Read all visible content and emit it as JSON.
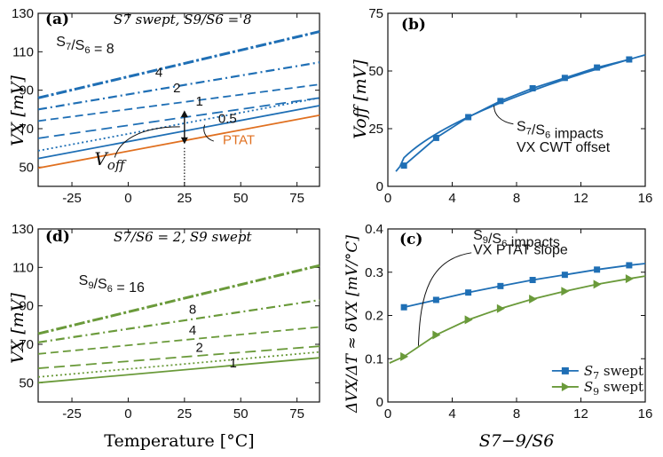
{
  "colors": {
    "blue": "#1f6fb5",
    "orange": "#e07020",
    "green": "#6a9a3a",
    "black": "#111111"
  },
  "chart_data": [
    {
      "id": "a",
      "type": "line",
      "panel_label": "(a)",
      "title": "S7 swept, S9/S6 = 8",
      "ylabel": "VX [mV]",
      "xlim": [
        -40,
        85
      ],
      "ylim": [
        40,
        130
      ],
      "xticks": [
        "-25",
        "0",
        "25",
        "50",
        "75"
      ],
      "yticks": [
        "50",
        "70",
        "90",
        "110",
        "130"
      ],
      "series": [
        {
          "name": "S7/S6 = 8",
          "x": [
            -40,
            85
          ],
          "y": [
            86,
            120.5
          ],
          "color": "#1f6fb5",
          "dash": "dashdot-heavy"
        },
        {
          "name": "4",
          "x": [
            -40,
            85
          ],
          "y": [
            80,
            104.5
          ],
          "color": "#1f6fb5",
          "dash": "dashdot"
        },
        {
          "name": "2",
          "x": [
            -40,
            85
          ],
          "y": [
            74,
            93
          ],
          "color": "#1f6fb5",
          "dash": "dashed"
        },
        {
          "name": "1",
          "x": [
            -40,
            85
          ],
          "y": [
            65,
            86
          ],
          "color": "#1f6fb5",
          "dash": "dashed-long"
        },
        {
          "name": "0.5",
          "x": [
            -40,
            85
          ],
          "y": [
            58.5,
            86
          ],
          "color": "#1f6fb5",
          "dash": "dotted"
        },
        {
          "name": "",
          "x": [
            -40,
            85
          ],
          "y": [
            54.5,
            82
          ],
          "color": "#1f6fb5",
          "dash": "solid"
        },
        {
          "name": "PTAT",
          "x": [
            -40,
            85
          ],
          "y": [
            49.5,
            77
          ],
          "color": "#e07020",
          "dash": "solid"
        }
      ],
      "annotations": [
        {
          "text": "S7/S6 = 8",
          "x": -32,
          "y": 113
        },
        {
          "text": "4",
          "x": 12,
          "y": 97
        },
        {
          "text": "2",
          "x": 20,
          "y": 89
        },
        {
          "text": "1",
          "x": 30,
          "y": 82
        },
        {
          "text": "0.5",
          "x": 40,
          "y": 73
        },
        {
          "text": "PTAT",
          "x": 42,
          "y": 62
        },
        {
          "text": "Voff",
          "x": -15,
          "y": 51
        }
      ],
      "voff_marker_x": 25
    },
    {
      "id": "b",
      "type": "line",
      "panel_label": "(b)",
      "ylabel": "Voff [mV]",
      "xlim": [
        0,
        16
      ],
      "ylim": [
        0,
        75
      ],
      "xticks": [
        "0",
        "4",
        "8",
        "12",
        "16"
      ],
      "yticks": [
        "0",
        "25",
        "50",
        "75"
      ],
      "series": [
        {
          "name": "",
          "x": [
            1,
            3,
            5,
            7,
            9,
            11,
            13,
            15
          ],
          "y": [
            9,
            21,
            30,
            37,
            42.5,
            47,
            51.5,
            55
          ],
          "color": "#1f6fb5"
        }
      ],
      "annotations": [
        {
          "text": "S7/S6 impacts",
          "x": 8,
          "y": 24
        },
        {
          "text": "VX CWT offset",
          "x": 8,
          "y": 15
        }
      ]
    },
    {
      "id": "d",
      "type": "line",
      "panel_label": "(d)",
      "title": "S7/S6 = 2, S9 swept",
      "ylabel": "VX [mV]",
      "xlabel": "Temperature [°C]",
      "xlim": [
        -40,
        85
      ],
      "ylim": [
        40,
        130
      ],
      "xticks": [
        "-25",
        "0",
        "25",
        "50",
        "75"
      ],
      "yticks": [
        "50",
        "70",
        "90",
        "110",
        "130"
      ],
      "series": [
        {
          "name": "S9/S6 = 16",
          "x": [
            -40,
            85
          ],
          "y": [
            75.5,
            111
          ],
          "color": "#6a9a3a",
          "dash": "dashdot-heavy"
        },
        {
          "name": "8",
          "x": [
            -40,
            85
          ],
          "y": [
            71,
            93
          ],
          "color": "#6a9a3a",
          "dash": "dashdot"
        },
        {
          "name": "4",
          "x": [
            -40,
            85
          ],
          "y": [
            65,
            79
          ],
          "color": "#6a9a3a",
          "dash": "dashed"
        },
        {
          "name": "2",
          "x": [
            -40,
            85
          ],
          "y": [
            57.5,
            69
          ],
          "color": "#6a9a3a",
          "dash": "dashed-long"
        },
        {
          "name": "",
          "x": [
            -40,
            85
          ],
          "y": [
            53,
            66
          ],
          "color": "#6a9a3a",
          "dash": "dotted"
        },
        {
          "name": "1",
          "x": [
            -40,
            85
          ],
          "y": [
            50,
            63
          ],
          "color": "#6a9a3a",
          "dash": "solid"
        }
      ],
      "annotations": [
        {
          "text": "S9/S6 = 16",
          "x": -22,
          "y": 101
        },
        {
          "text": "8",
          "x": 27,
          "y": 86
        },
        {
          "text": "4",
          "x": 27,
          "y": 75
        },
        {
          "text": "2",
          "x": 30,
          "y": 66
        },
        {
          "text": "1",
          "x": 45,
          "y": 58
        }
      ]
    },
    {
      "id": "c",
      "type": "line",
      "panel_label": "(c)",
      "ylabel": "ΔVX/ΔT ≈ δVX [mV/°C]",
      "xlabel": "S7−9/S6",
      "xlim": [
        0,
        16
      ],
      "ylim": [
        0,
        0.4
      ],
      "xticks": [
        "0",
        "4",
        "8",
        "12",
        "16"
      ],
      "yticks": [
        "0",
        "0.1",
        "0.2",
        "0.3",
        "0.4"
      ],
      "series": [
        {
          "name": "S7 swept",
          "x": [
            1,
            3,
            5,
            7,
            9,
            11,
            13,
            15
          ],
          "y": [
            0.219,
            0.236,
            0.253,
            0.268,
            0.282,
            0.294,
            0.306,
            0.316
          ],
          "color": "#1f6fb5",
          "marker": "square"
        },
        {
          "name": "S9 swept",
          "x": [
            1,
            3,
            5,
            7,
            9,
            11,
            13,
            15
          ],
          "y": [
            0.105,
            0.155,
            0.19,
            0.216,
            0.238,
            0.256,
            0.272,
            0.285
          ],
          "color": "#6a9a3a",
          "marker": "triangle"
        }
      ],
      "annotations": [
        {
          "text": "S9/S6 impacts",
          "x": 5.3,
          "y": 0.375
        },
        {
          "text": "VX PTAT slope",
          "x": 5.3,
          "y": 0.342
        }
      ],
      "legend": "bottom-right"
    }
  ]
}
